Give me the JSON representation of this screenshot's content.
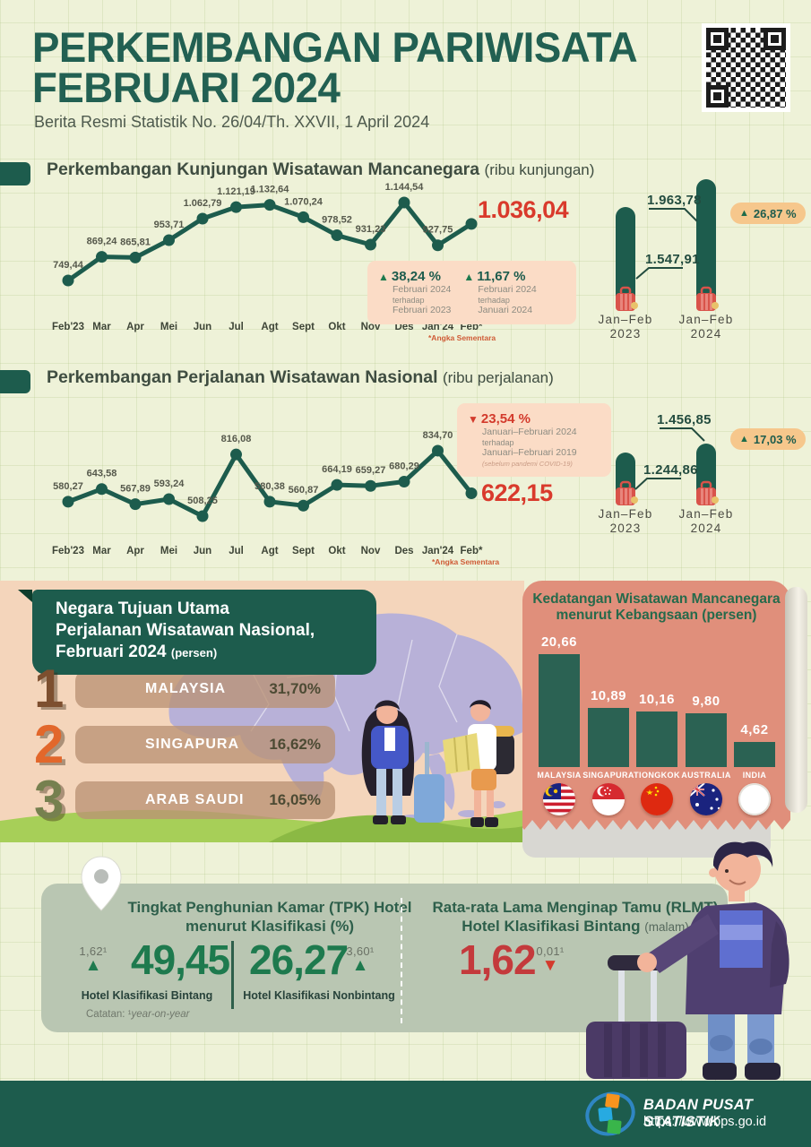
{
  "colors": {
    "background": "#eef2d8",
    "dark_green": "#1d5c4d",
    "accent_red": "#d93a2c",
    "annotation_peach": "#fbdcc6",
    "badge_orange": "#f6c78c",
    "coral_panel": "#e08f7b",
    "mid_peach": "#f4d5bb",
    "sage_panel": "#b9c6b2",
    "map_purple": "#b8b1d8",
    "grass_green": "#a7cf58"
  },
  "header": {
    "title_line1": "PERKEMBANGAN PARIWISATA",
    "title_line2": "FEBRUARI 2024",
    "subtitle": "Berita Resmi Statistik No. 26/04/Th. XXVII, 1 April 2024"
  },
  "section1": {
    "title": "Perkembangan Kunjungan Wisatawan Mancanegara",
    "unit": "(ribu kunjungan)",
    "final_value": "1.036,04",
    "footnote": "*Angka Sementara",
    "annotations": [
      {
        "direction": "up",
        "value": "38,24 %",
        "line1": "Februari 2024",
        "line2": "terhadap",
        "line3": "Februari 2023"
      },
      {
        "direction": "up",
        "value": "11,67 %",
        "line1": "Februari 2024",
        "line2": "terhadap",
        "line3": "Januari 2024"
      }
    ],
    "comparison": {
      "badge": "26,87 %"
    }
  },
  "section2": {
    "title": "Perkembangan Perjalanan Wisatawan Nasional",
    "unit": "(ribu perjalanan)",
    "final_value": "622,15",
    "footnote": "*Angka Sementara",
    "annotation": {
      "direction": "down",
      "value": "23,54 %",
      "line1": "Januari–Februari 2024",
      "line2": "terhadap",
      "line3": "Januari–Februari 2019",
      "line4": "(sebelum pandemi COVID-19)"
    },
    "comparison": {
      "badge": "17,03 %"
    }
  },
  "destinations": {
    "title_line1": "Negara Tujuan Utama",
    "title_line2": "Perjalanan Wisatawan Nasional,",
    "title_line3": "Februari 2024",
    "title_line3_small": "(persen)",
    "rows": [
      {
        "rank": "1",
        "country": "MALAYSIA",
        "value": "31,70%",
        "color": "#7d4f2f"
      },
      {
        "rank": "2",
        "country": "SINGAPURA",
        "value": "16,62%",
        "color": "#e2672b"
      },
      {
        "rank": "3",
        "country": "ARAB SAUDI",
        "value": "16,05%",
        "color": "#76804f"
      }
    ]
  },
  "nationality": {
    "title_line1": "Kedatangan Wisatawan Mancanegara",
    "title_line2": "menurut Kebangsaan (persen)"
  },
  "hotels": {
    "tpk_title_line1": "Tingkat Penghunian Kamar (TPK) Hotel",
    "tpk_title_line2": "menurut Klasifikasi (%)",
    "star": {
      "value": "49,45",
      "delta": "1,62¹",
      "label": "Hotel Klasifikasi Bintang"
    },
    "nonstar": {
      "value": "26,27",
      "delta": "3,60¹",
      "label": "Hotel Klasifikasi Nonbintang"
    },
    "note_label": "Catatan:",
    "note_sup": "¹",
    "note_value": "year-on-year",
    "rlmt_title_line1": "Rata-rata Lama Menginap Tamu (RLMT)",
    "rlmt_title_line2": "Hotel Klasifikasi Bintang",
    "rlmt_unit": "(malam)",
    "rlmt": {
      "value": "1,62",
      "delta": "0,01¹"
    }
  },
  "footer": {
    "org": "BADAN PUSAT STATISTIK",
    "url": "https://www.bps.go.id"
  },
  "chart_data": [
    {
      "type": "line",
      "title": "Perkembangan Kunjungan Wisatawan Mancanegara",
      "ylabel": "ribu kunjungan",
      "x": [
        "Feb'23",
        "Mar",
        "Apr",
        "Mei",
        "Jun",
        "Jul",
        "Agt",
        "Sept",
        "Okt",
        "Nov",
        "Des",
        "Jan'24",
        "Feb*"
      ],
      "values": [
        749.44,
        869.24,
        865.81,
        953.71,
        1062.79,
        1121.19,
        1132.64,
        1070.24,
        978.52,
        931.23,
        1144.54,
        927.75,
        1036.04
      ],
      "labels": [
        "749,44",
        "869,24",
        "865,81",
        "953,71",
        "1.062,79",
        "1.121,19",
        "1.132,64",
        "1.070,24",
        "978,52",
        "931,23",
        "1.144,54",
        "927,75",
        "1.036,04"
      ]
    },
    {
      "type": "line",
      "title": "Perkembangan Perjalanan Wisatawan Nasional",
      "ylabel": "ribu perjalanan",
      "x": [
        "Feb'23",
        "Mar",
        "Apr",
        "Mei",
        "Jun",
        "Jul",
        "Agt",
        "Sept",
        "Okt",
        "Nov",
        "Des",
        "Jan'24",
        "Feb*"
      ],
      "values": [
        580.27,
        643.58,
        567.89,
        593.24,
        508.25,
        816.08,
        580.38,
        560.87,
        664.19,
        659.27,
        680.29,
        834.7,
        622.15
      ],
      "labels": [
        "580,27",
        "643,58",
        "567,89",
        "593,24",
        "508,25",
        "816,08",
        "580,38",
        "560,87",
        "664,19",
        "659,27",
        "680,29",
        "834,70",
        "622,15"
      ]
    },
    {
      "type": "bar",
      "title": "Kedatangan Wisatawan Mancanegara menurut Kebangsaan (persen)",
      "categories": [
        "MALAYSIA",
        "SINGAPURA",
        "TIONGKOK",
        "AUSTRALIA",
        "INDIA"
      ],
      "values": [
        20.66,
        10.89,
        10.16,
        9.8,
        4.62
      ],
      "labels": [
        "20,66",
        "10,89",
        "10,16",
        "9,80",
        "4,62"
      ],
      "flags": [
        "malaysia-flag",
        "singapore-flag",
        "china-flag",
        "australia-flag",
        "india-flag"
      ]
    },
    {
      "type": "bar",
      "categories": [
        "Jan–Feb 2023",
        "Jan–Feb 2024"
      ],
      "values": [
        1547.91,
        1963.78
      ],
      "labels": [
        "1.547,91",
        "1.963,78"
      ],
      "change": "26,87 %"
    },
    {
      "type": "bar",
      "categories": [
        "Jan–Feb 2023",
        "Jan–Feb 2024"
      ],
      "values": [
        1244.86,
        1456.85
      ],
      "labels": [
        "1.244,86",
        "1.456,85"
      ],
      "change": "17,03 %"
    }
  ]
}
